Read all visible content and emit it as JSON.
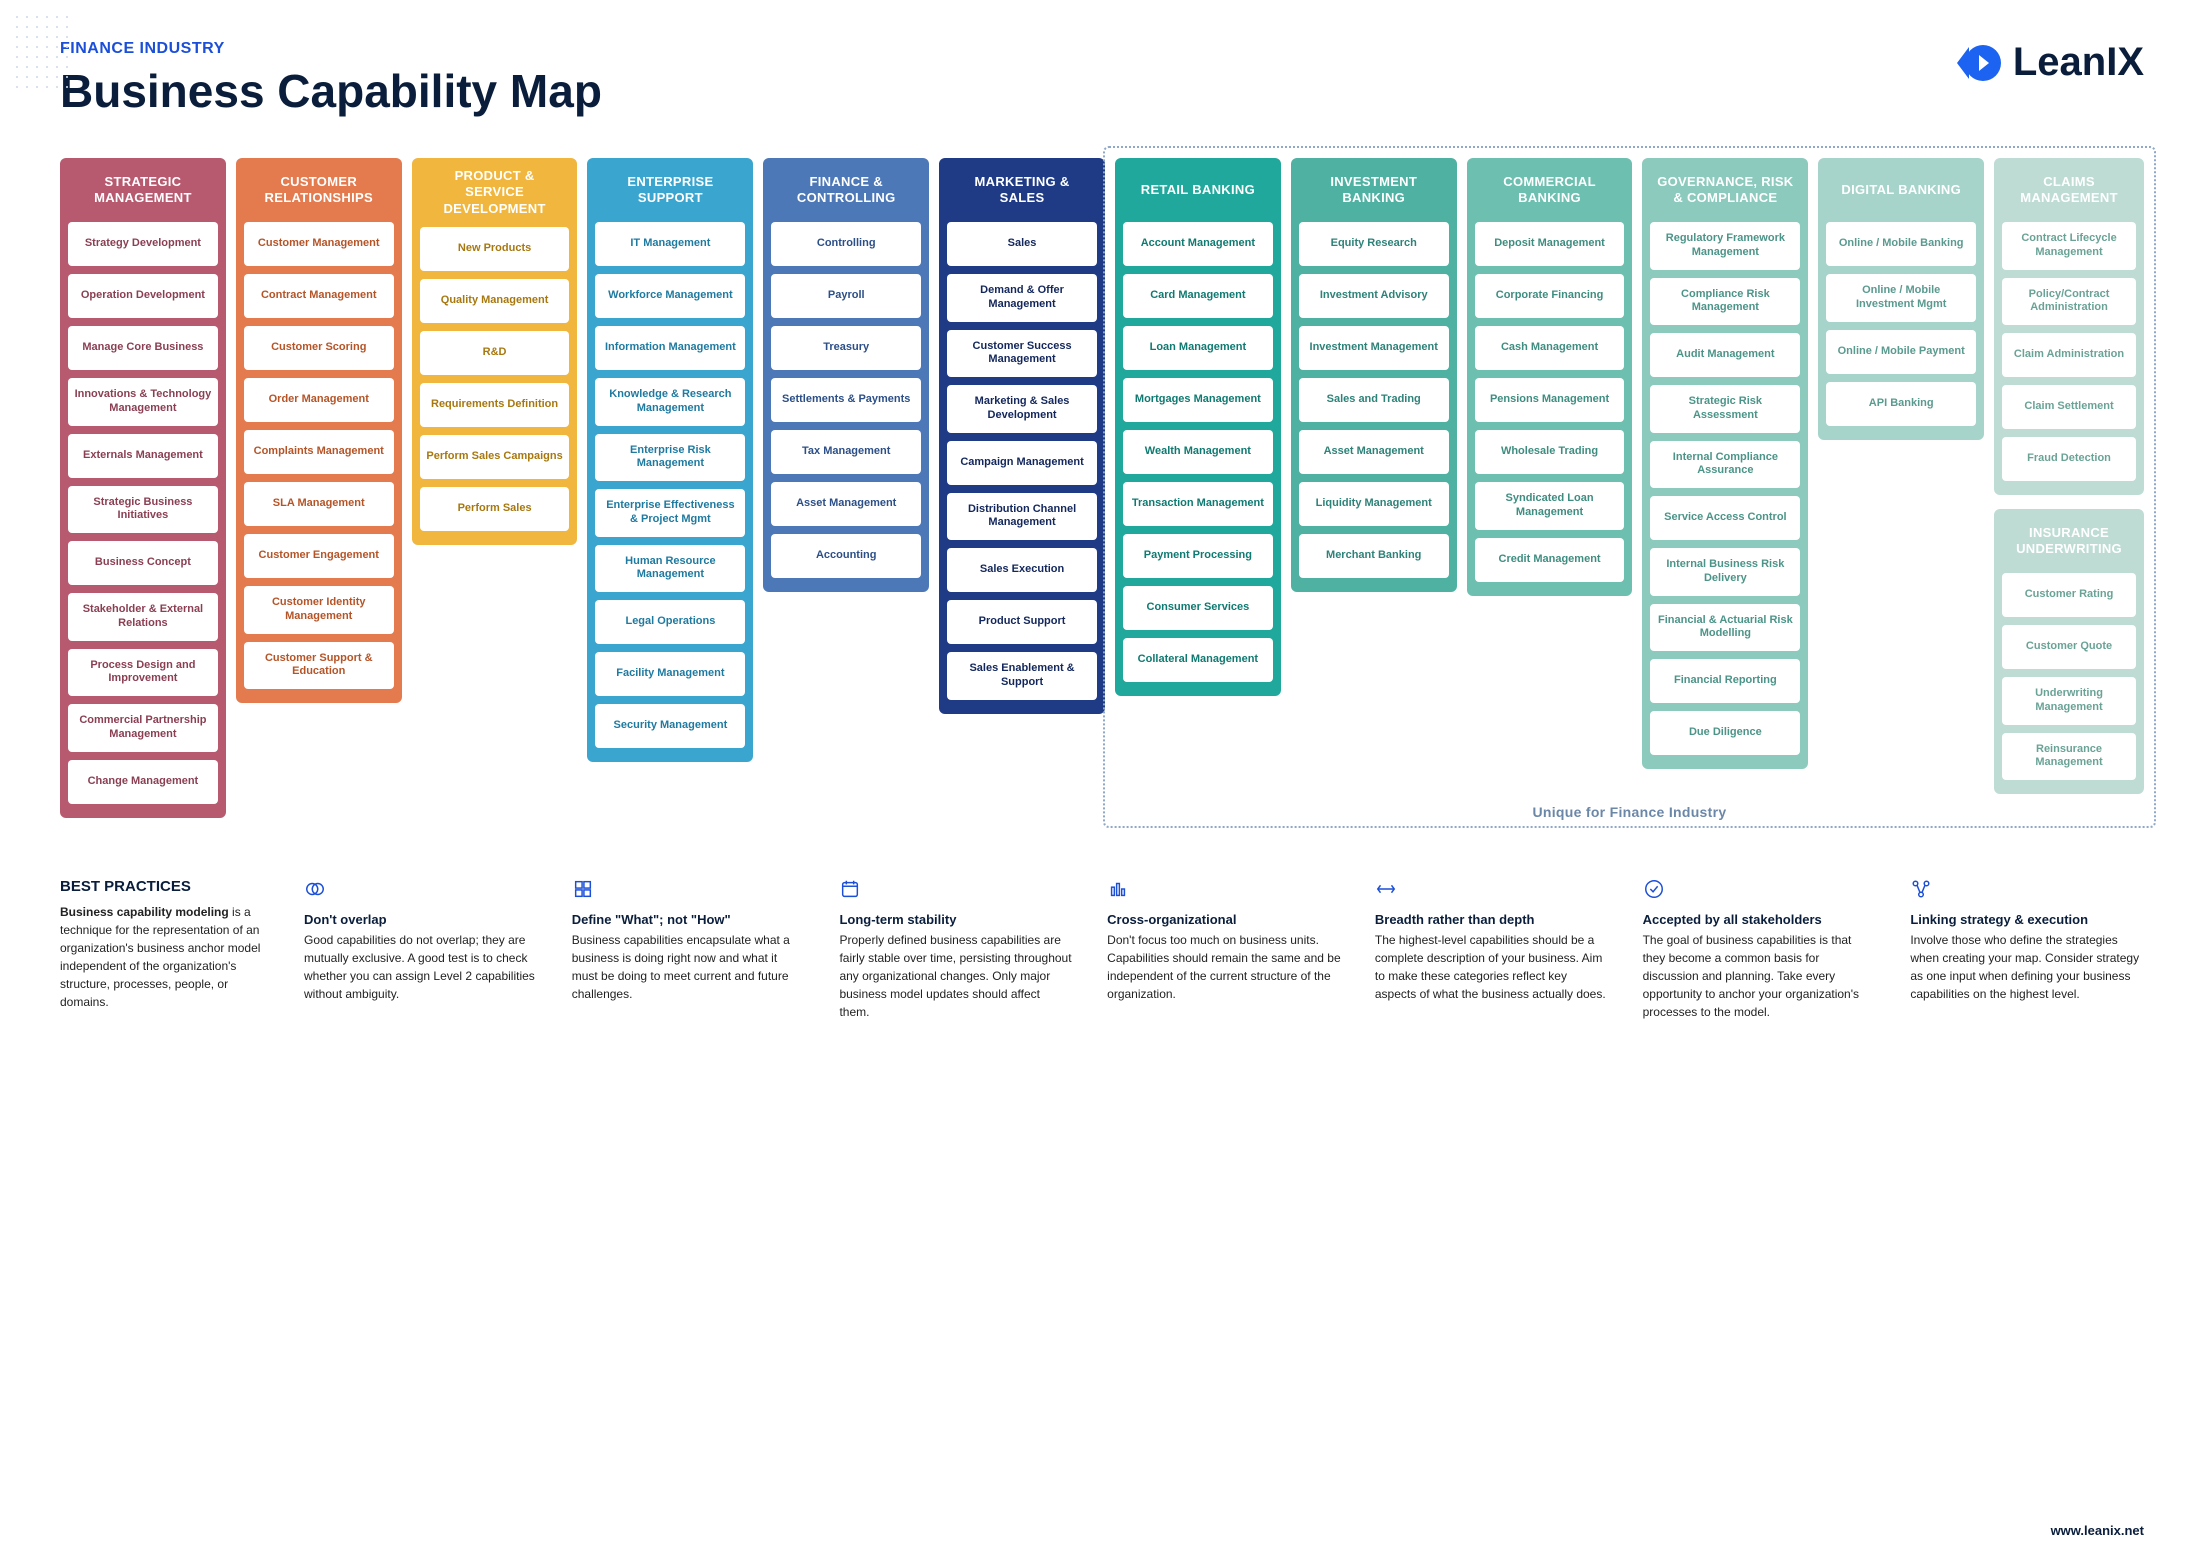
{
  "header": {
    "subtitle": "FINANCE INDUSTRY",
    "title": "Business Capability Map",
    "brand": "LeanIX",
    "brand_color": "#1b63f0"
  },
  "footer_url": "www.leanix.net",
  "unique_label": "Unique for Finance Industry",
  "columns": [
    {
      "id": "strategic",
      "title": "STRATEGIC MANAGEMENT",
      "bg": "#b85a6f",
      "item_text": "#8a3f53",
      "items": [
        "Strategy Development",
        "Operation Development",
        "Manage Core Business",
        "Innovations & Technology Management",
        "Externals Management",
        "Strategic Business Initiatives",
        "Business Concept",
        "Stakeholder & External Relations",
        "Process Design and Improvement",
        "Commercial Partnership Management",
        "Change Management"
      ]
    },
    {
      "id": "customer",
      "title": "CUSTOMER RELATIONSHIPS",
      "bg": "#e37b4f",
      "item_text": "#b55427",
      "items": [
        "Customer Management",
        "Contract Management",
        "Customer Scoring",
        "Order Management",
        "Complaints Management",
        "SLA Management",
        "Customer Engagement",
        "Customer Identity Management",
        "Customer Support & Education"
      ]
    },
    {
      "id": "product",
      "title": "PRODUCT & SERVICE DEVELOPMENT",
      "bg": "#f0b63d",
      "item_text": "#a87810",
      "items": [
        "New Products",
        "Quality Management",
        "R&D",
        "Requirements Definition",
        "Perform Sales Campaigns",
        "Perform Sales"
      ]
    },
    {
      "id": "enterprise",
      "title": "ENTERPRISE SUPPORT",
      "bg": "#3aa6cf",
      "item_text": "#1f7aa0",
      "items": [
        "IT Management",
        "Workforce Management",
        "Information Management",
        "Knowledge & Research Management",
        "Enterprise Risk Management",
        "Enterprise Effectiveness & Project Mgmt",
        "Human Resource Management",
        "Legal Operations",
        "Facility Management",
        "Security Management"
      ]
    },
    {
      "id": "finance",
      "title": "FINANCE & CONTROLLING",
      "bg": "#4d78b8",
      "item_text": "#2c4f87",
      "items": [
        "Controlling",
        "Payroll",
        "Treasury",
        "Settlements & Payments",
        "Tax Management",
        "Asset Management",
        "Accounting"
      ]
    },
    {
      "id": "marketing",
      "title": "MARKETING & SALES",
      "bg": "#1f3b85",
      "item_text": "#13275c",
      "items": [
        "Sales",
        "Demand & Offer Management",
        "Customer Success Management",
        "Marketing & Sales Development",
        "Campaign Management",
        "Distribution Channel Management",
        "Sales Execution",
        "Product Support",
        "Sales Enablement & Support"
      ]
    },
    {
      "id": "retail",
      "title": "RETAIL BANKING",
      "bg": "#1fa89b",
      "item_text": "#0f7a71",
      "items": [
        "Account Management",
        "Card Management",
        "Loan Management",
        "Mortgages Management",
        "Wealth Management",
        "Transaction Management",
        "Payment Processing",
        "Consumer Services",
        "Collateral Management"
      ]
    },
    {
      "id": "investment",
      "title": "INVESTMENT BANKING",
      "bg": "#4fb1a2",
      "item_text": "#2e8278",
      "items": [
        "Equity Research",
        "Investment Advisory",
        "Investment Management",
        "Sales and Trading",
        "Asset Management",
        "Liquidity Management",
        "Merchant Banking"
      ]
    },
    {
      "id": "commercial",
      "title": "COMMERCIAL BANKING",
      "bg": "#6dbfb0",
      "item_text": "#3f8d80",
      "items": [
        "Deposit Management",
        "Corporate Financing",
        "Cash Management",
        "Pensions Management",
        "Wholesale Trading",
        "Syndicated Loan Management",
        "Credit Management"
      ]
    },
    {
      "id": "governance",
      "title": "GOVERNANCE, RISK & COMPLIANCE",
      "bg": "#8ccabe",
      "item_text": "#4c9488",
      "items": [
        "Regulatory Framework Management",
        "Compliance Risk Management",
        "Audit Management",
        "Strategic Risk Assessment",
        "Internal Compliance Assurance",
        "Service Access Control",
        "Internal Business Risk Delivery",
        "Financial & Actuarial Risk  Modelling",
        "Financial Reporting",
        "Due Diligence"
      ]
    },
    {
      "id": "digital",
      "title": "DIGITAL BANKING",
      "bg": "#a6d3ca",
      "item_text": "#5a9a8f",
      "items": [
        "Online / Mobile Banking",
        "Online / Mobile Investment Mgmt",
        "Online / Mobile Payment",
        "API Banking"
      ]
    },
    {
      "id": "claims",
      "title": "CLAIMS MANAGEMENT",
      "bg": "#bedcd4",
      "item_text": "#6aa396",
      "items": [
        "Contract Lifecycle Management",
        "Policy/Contract Administration",
        "Claim Administration",
        "Claim Settlement",
        "Fraud Detection"
      ]
    },
    {
      "id": "insurance",
      "title": "INSURANCE UNDERWRITING",
      "bg": "#bedcd4",
      "item_text": "#6aa396",
      "items": [
        "Customer Rating",
        "Customer Quote",
        "Underwriting Management",
        "Reinsurance Management"
      ]
    }
  ],
  "split_last_two_ids": [
    "claims",
    "insurance"
  ],
  "unique_start_id": "retail",
  "best_practices": {
    "lead_title": "BEST PRACTICES",
    "lead_bold": "Business capability modeling",
    "lead_rest": " is a technique for the representation of an organization's business anchor model independent of the organization's structure, processes, people, or domains.",
    "items": [
      {
        "icon": "no-overlap",
        "title": "Don't overlap",
        "text": "Good capabilities do not overlap; they are mutually exclusive. A good test is to check whether you can assign Level 2 capabilities without ambiguity."
      },
      {
        "icon": "what-not-how",
        "title": "Define \"What\"; not \"How\"",
        "text": "Business capabilities encapsulate what a business is doing right now and what it must be doing to meet current and future challenges."
      },
      {
        "icon": "stability",
        "title": "Long-term stability",
        "text": "Properly defined business capabilities are fairly stable over time, persisting throughout any organizational changes. Only major business model updates should affect them."
      },
      {
        "icon": "cross-org",
        "title": "Cross-organizational",
        "text": "Don't focus too much on business units. Capabilities should remain the same and be independent of the current structure of the organization."
      },
      {
        "icon": "breadth",
        "title": "Breadth rather than depth",
        "text": "The highest-level capabilities should be a complete description of your business. Aim to make these categories reflect key aspects of what the business actually does."
      },
      {
        "icon": "accepted",
        "title": "Accepted by all stakeholders",
        "text": "The goal of business capabilities is that they become a common basis for discussion and planning. Take every opportunity to anchor your organization's processes to the model."
      },
      {
        "icon": "linking",
        "title": "Linking strategy & execution",
        "text": "Involve those who define the strategies when creating your map. Consider strategy as one input when defining your business capabilities on the highest level."
      }
    ]
  }
}
